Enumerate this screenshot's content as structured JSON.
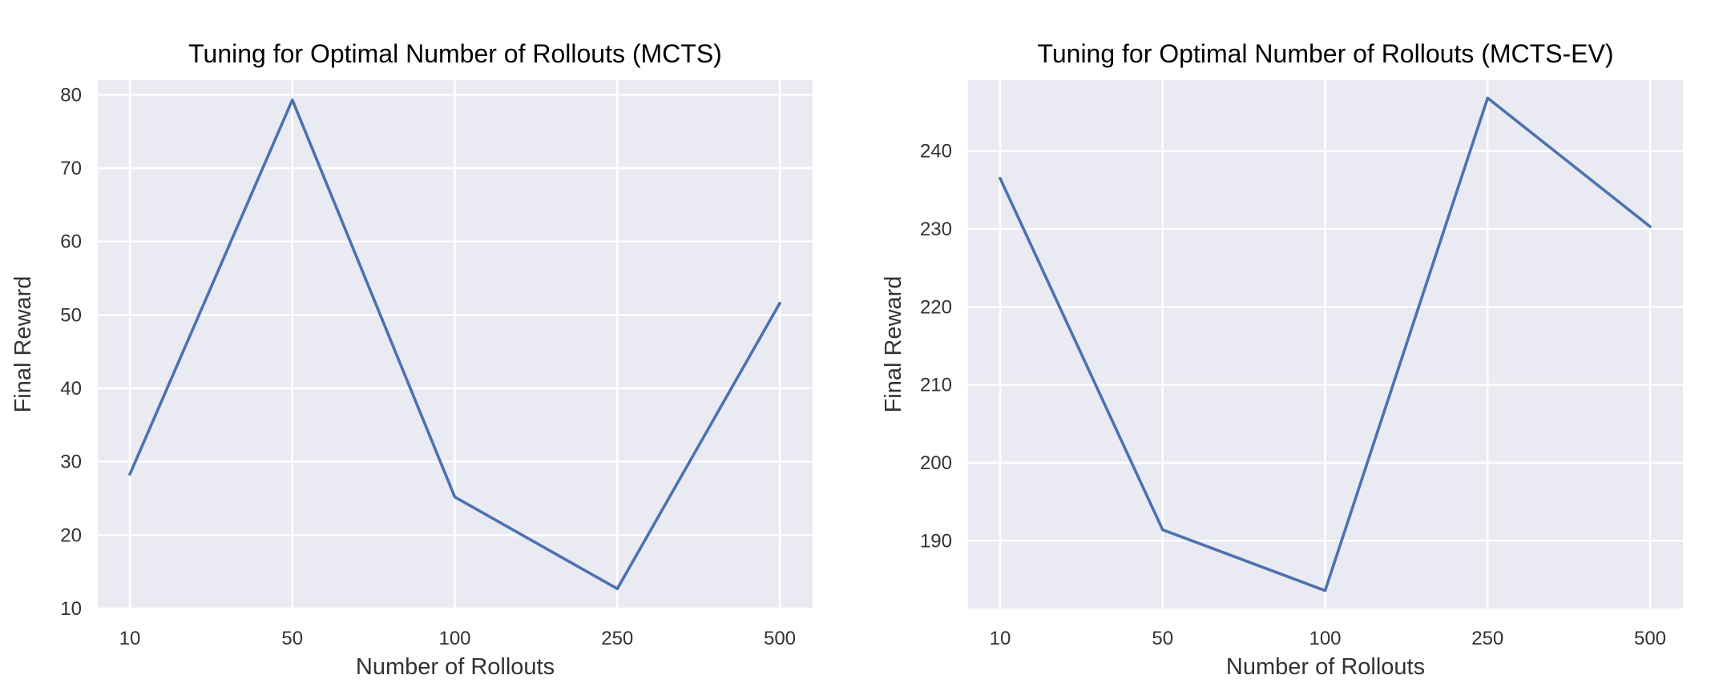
{
  "colors": {
    "background": "#ffffff",
    "plot_background": "#eaeaf2",
    "grid": "#ffffff",
    "line": "#4c72b0",
    "text": "#333333"
  },
  "chart_data": [
    {
      "type": "line",
      "title": "Tuning for Optimal Number of Rollouts (MCTS)",
      "xlabel": "Number of Rollouts",
      "ylabel": "Final Reward",
      "categories": [
        "10",
        "50",
        "100",
        "250",
        "500"
      ],
      "series": [
        {
          "values": [
            28.3,
            79.3,
            25.2,
            12.7,
            51.6
          ]
        }
      ],
      "ylim": [
        10,
        82
      ],
      "yticks": [
        10,
        20,
        30,
        40,
        50,
        60,
        70,
        80
      ],
      "grid": true,
      "legend": "none"
    },
    {
      "type": "line",
      "title": "Tuning for Optimal Number of Rollouts (MCTS-EV)",
      "xlabel": "Number of Rollouts",
      "ylabel": "Final Reward",
      "categories": [
        "10",
        "50",
        "100",
        "250",
        "500"
      ],
      "series": [
        {
          "values": [
            236.5,
            191.4,
            183.6,
            246.8,
            230.3
          ]
        }
      ],
      "ylim": [
        181.3,
        249.1
      ],
      "yticks": [
        190,
        200,
        210,
        220,
        230,
        240
      ],
      "grid": true,
      "legend": "none"
    }
  ]
}
